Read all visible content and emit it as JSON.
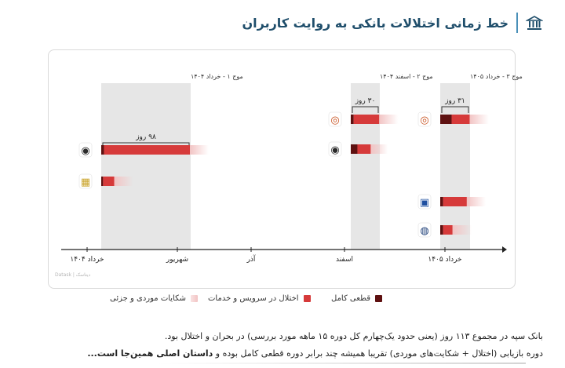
{
  "header": {
    "title": "خط زمانی اختلالات بانکی به روایت کاربران",
    "icon": "bank-building-icon",
    "accent": "#4a90b8"
  },
  "chart_data": {
    "type": "timeline",
    "x_ticks": [
      "خرداد ۱۴۰۴",
      "شهریور",
      "آذر",
      "اسفند",
      "خرداد ۱۴۰۵"
    ],
    "watermark": "Datask | دیتاسک",
    "waves": [
      {
        "label": "موج ۱ - خرداد ۱۴۰۴",
        "duration": "۹۸ روز"
      },
      {
        "label": "موج ۲ - اسفند ۱۴۰۴",
        "duration": "۳۰ روز"
      },
      {
        "label": "موج ۳ - خرداد ۱۴۰۵",
        "duration": "۳۱ روز"
      }
    ],
    "series": [
      {
        "name": "قطعی کامل",
        "color": "#5e1010"
      },
      {
        "name": "اختلال در سرویس و خدمات",
        "color": "#d63a3a"
      },
      {
        "name": "شکایات موردی و جزئی",
        "color": "#f2c4c4"
      }
    ],
    "bars": [
      {
        "bank": "sepah",
        "wave": 1,
        "outage_days": 3,
        "disruption_days": 92,
        "complaint_days": 20
      },
      {
        "bank": "pasargad",
        "wave": 1,
        "outage_days": 2,
        "disruption_days": 12,
        "complaint_days": 20
      },
      {
        "bank": "mellat",
        "wave": 2,
        "outage_days": 3,
        "disruption_days": 27,
        "complaint_days": 20
      },
      {
        "bank": "sepah",
        "wave": 2,
        "outage_days": 7,
        "disruption_days": 14,
        "complaint_days": 18
      },
      {
        "bank": "mellat",
        "wave": 3,
        "outage_days": 12,
        "disruption_days": 19,
        "complaint_days": 20
      },
      {
        "bank": "saderat",
        "wave": 3,
        "outage_days": 3,
        "disruption_days": 25,
        "complaint_days": 20
      },
      {
        "bank": "refah",
        "wave": 3,
        "outage_days": 3,
        "disruption_days": 10,
        "complaint_days": 20
      }
    ]
  },
  "notes": {
    "line1": "بانک سپه در مجموع ۱۱۳ روز (یعنی حدود یک‌چهارم کل دوره ۱۵ ماهه مورد بررسی) در بحران و اختلال بود.",
    "line2_part1": "دوره بازیابی (اختلال + شکایت‌های موردی) تقریبا همیشه چند برابر دوره قطعی کامل بوده و ",
    "line2_bold": "داستان اصلی همین‌جا است...",
    "line2_part2": ""
  }
}
